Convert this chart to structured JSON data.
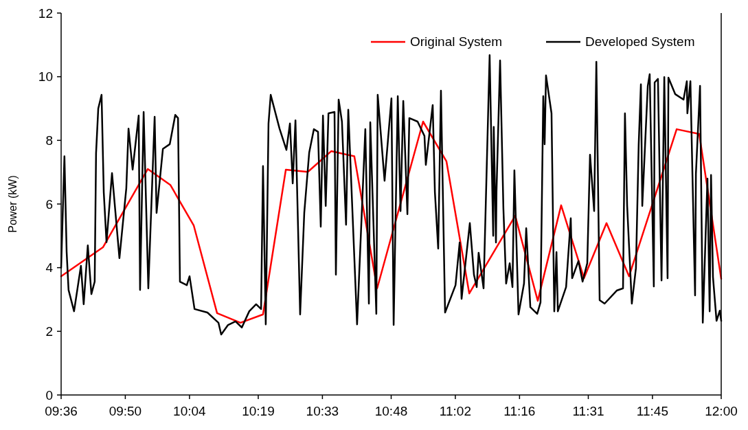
{
  "chart_data": {
    "type": "line",
    "ylabel": "Power (kW)",
    "xlim": [
      9.6,
      12.0
    ],
    "ylim": [
      0,
      12
    ],
    "xticks": [
      {
        "value": 9.6,
        "label": "09:36"
      },
      {
        "value": 9.8333,
        "label": "09:50"
      },
      {
        "value": 10.0667,
        "label": "10:04"
      },
      {
        "value": 10.3167,
        "label": "10:19"
      },
      {
        "value": 10.55,
        "label": "10:33"
      },
      {
        "value": 10.8,
        "label": "10:48"
      },
      {
        "value": 11.0333,
        "label": "11:02"
      },
      {
        "value": 11.2667,
        "label": "11:16"
      },
      {
        "value": 11.5167,
        "label": "11:31"
      },
      {
        "value": 11.75,
        "label": "11:45"
      },
      {
        "value": 12.0,
        "label": "12:00"
      }
    ],
    "yticks": [
      0,
      2,
      4,
      6,
      8,
      10,
      12
    ],
    "grid": false,
    "legend": "top right",
    "marker": "none",
    "line_style": "solid",
    "series": [
      {
        "name": "Original System",
        "color": "#ff0000",
        "x": [
          9.6,
          9.752,
          9.915,
          9.997,
          10.082,
          10.167,
          10.252,
          10.334,
          10.417,
          10.497,
          10.582,
          10.666,
          10.749,
          10.916,
          11.001,
          11.084,
          11.251,
          11.333,
          11.418,
          11.501,
          11.583,
          11.665,
          11.838,
          11.92,
          12.0
        ],
        "values": [
          3.73,
          4.64,
          7.1,
          6.6,
          5.33,
          2.57,
          2.27,
          2.53,
          7.08,
          7.01,
          7.66,
          7.5,
          3.35,
          8.59,
          7.34,
          3.19,
          5.63,
          2.96,
          5.96,
          3.67,
          5.4,
          3.73,
          8.35,
          8.2,
          3.65
        ]
      },
      {
        "name": "Developed System",
        "color": "#000000",
        "x": [
          9.6,
          9.612,
          9.62,
          9.627,
          9.647,
          9.672,
          9.682,
          9.697,
          9.71,
          9.722,
          9.727,
          9.735,
          9.747,
          9.755,
          9.765,
          9.785,
          9.812,
          9.837,
          9.845,
          9.86,
          9.882,
          9.887,
          9.9,
          9.917,
          9.94,
          9.947,
          9.97,
          9.995,
          10.015,
          10.025,
          10.032,
          10.057,
          10.067,
          10.085,
          10.132,
          10.172,
          10.182,
          10.207,
          10.234,
          10.257,
          10.284,
          10.309,
          10.327,
          10.334,
          10.344,
          10.354,
          10.362,
          10.394,
          10.419,
          10.432,
          10.442,
          10.452,
          10.469,
          10.484,
          10.502,
          10.519,
          10.534,
          10.544,
          10.552,
          10.562,
          10.572,
          10.594,
          10.599,
          10.609,
          10.621,
          10.636,
          10.644,
          10.676,
          10.706,
          10.719,
          10.724,
          10.746,
          10.751,
          10.776,
          10.801,
          10.809,
          10.824,
          10.834,
          10.844,
          10.859,
          10.866,
          10.896,
          10.921,
          10.926,
          10.951,
          10.959,
          10.971,
          10.981,
          10.996,
          11.034,
          11.049,
          11.056,
          11.086,
          11.101,
          11.111,
          11.118,
          11.136,
          11.158,
          11.171,
          11.173,
          11.181,
          11.183,
          11.196,
          11.208,
          11.218,
          11.231,
          11.241,
          11.248,
          11.263,
          11.283,
          11.291,
          11.306,
          11.331,
          11.343,
          11.353,
          11.358,
          11.363,
          11.383,
          11.393,
          11.401,
          11.406,
          11.436,
          11.453,
          11.458,
          11.481,
          11.496,
          11.513,
          11.523,
          11.538,
          11.546,
          11.558,
          11.576,
          11.62,
          11.643,
          11.65,
          11.658,
          11.675,
          11.69,
          11.7,
          11.708,
          11.713,
          11.733,
          11.74,
          11.755,
          11.758,
          11.77,
          11.783,
          11.793,
          11.805,
          11.808,
          11.833,
          11.863,
          11.875,
          11.877,
          11.888,
          11.905,
          11.908,
          11.923,
          11.933,
          11.95,
          11.958,
          11.963,
          11.97,
          11.983,
          11.995,
          12.0
        ],
        "values": [
          4.0,
          7.5,
          4.5,
          3.3,
          2.63,
          4.06,
          2.85,
          4.7,
          3.17,
          3.56,
          7.6,
          9.0,
          9.43,
          6.37,
          4.8,
          6.97,
          4.3,
          6.5,
          8.37,
          7.08,
          8.78,
          3.3,
          8.89,
          3.35,
          8.74,
          5.72,
          7.73,
          7.88,
          8.8,
          8.7,
          3.56,
          3.45,
          3.73,
          2.7,
          2.59,
          2.27,
          1.9,
          2.2,
          2.31,
          2.12,
          2.63,
          2.85,
          2.7,
          7.19,
          2.22,
          8.53,
          9.43,
          8.37,
          7.7,
          8.53,
          6.65,
          8.63,
          2.53,
          5.72,
          7.62,
          8.35,
          8.27,
          5.29,
          8.78,
          5.94,
          8.85,
          8.89,
          3.78,
          9.28,
          8.59,
          5.35,
          8.96,
          2.22,
          8.35,
          2.87,
          8.57,
          2.55,
          9.43,
          6.73,
          9.32,
          2.2,
          9.39,
          5.78,
          9.24,
          5.68,
          8.7,
          8.59,
          8.14,
          7.23,
          9.11,
          6.37,
          4.6,
          9.56,
          2.59,
          3.45,
          4.79,
          3.02,
          5.4,
          3.78,
          3.39,
          4.47,
          3.35,
          10.68,
          5.0,
          8.42,
          4.79,
          6.41,
          10.51,
          5.87,
          3.5,
          4.14,
          3.39,
          7.06,
          2.53,
          3.5,
          5.24,
          2.76,
          2.55,
          2.91,
          9.39,
          7.88,
          10.04,
          8.85,
          2.63,
          4.49,
          2.63,
          3.39,
          5.55,
          3.67,
          4.21,
          3.56,
          4.14,
          7.55,
          5.78,
          10.47,
          2.98,
          2.87,
          3.28,
          3.35,
          8.85,
          5.94,
          2.87,
          3.99,
          7.88,
          9.76,
          5.94,
          9.71,
          10.08,
          3.41,
          9.82,
          9.93,
          3.6,
          9.99,
          3.67,
          9.97,
          9.45,
          9.28,
          9.86,
          8.85,
          9.86,
          3.13,
          6.95,
          9.71,
          2.27,
          6.8,
          2.63,
          6.91,
          3.71,
          2.33,
          2.65,
          2.33
        ]
      }
    ]
  }
}
